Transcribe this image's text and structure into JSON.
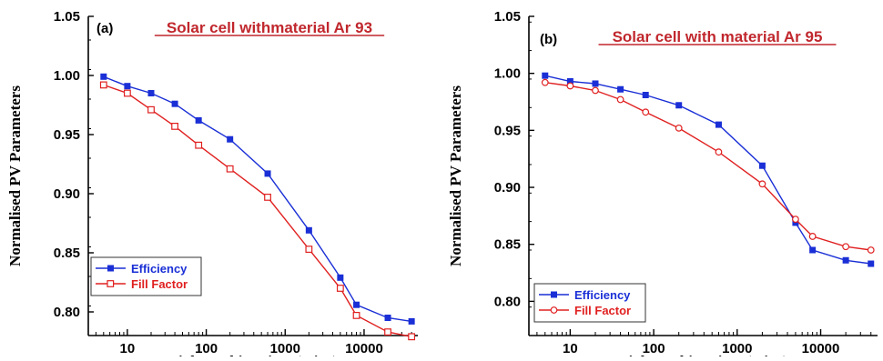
{
  "chart_data": [
    {
      "type": "line",
      "panel_label": "(a)",
      "title": "Solar cell withmaterial Ar 93",
      "xlabel": "Light soaking time (mins)",
      "ylabel": "Normalised PV Parameters",
      "xscale": "log",
      "xlim": [
        3.2,
        48000
      ],
      "ylim": [
        0.78,
        1.05
      ],
      "x_ticks": [
        10,
        100,
        1000,
        10000
      ],
      "x_tick_labels": [
        "10",
        "100",
        "1000",
        "10000"
      ],
      "y_ticks": [
        0.8,
        0.85,
        0.9,
        0.95,
        1.0,
        1.05
      ],
      "y_tick_labels": [
        "0.80",
        "0.85",
        "0.90",
        "0.95",
        "1.00",
        "1.05"
      ],
      "legend_position": "bottom-left",
      "x": [
        5,
        10,
        20,
        40,
        80,
        200,
        600,
        2000,
        5000,
        8000,
        20000,
        40000
      ],
      "series": [
        {
          "name": "Efficiency",
          "color": "#1a2fd6",
          "marker": "filled-square",
          "values": [
            0.999,
            0.991,
            0.985,
            0.976,
            0.962,
            0.946,
            0.917,
            0.869,
            0.829,
            0.806,
            0.795,
            0.792
          ]
        },
        {
          "name": "Fill Factor",
          "color": "#e02020",
          "marker": "open-square",
          "values": [
            0.992,
            0.985,
            0.971,
            0.957,
            0.941,
            0.921,
            0.897,
            0.853,
            0.82,
            0.797,
            0.783,
            0.779
          ]
        }
      ]
    },
    {
      "type": "line",
      "panel_label": "(b)",
      "title": "Solar cell with material Ar 95",
      "xlabel": "Light soaking time (mins)",
      "ylabel": "Normalised PV Parameters",
      "xscale": "log",
      "xlim": [
        3.2,
        48000
      ],
      "ylim": [
        0.77,
        1.05
      ],
      "x_ticks": [
        10,
        100,
        1000,
        10000
      ],
      "x_tick_labels": [
        "10",
        "100",
        "1000",
        "10000"
      ],
      "y_ticks": [
        0.8,
        0.85,
        0.9,
        0.95,
        1.0,
        1.05
      ],
      "y_tick_labels": [
        "0.80",
        "0.85",
        "0.90",
        "0.95",
        "1.00",
        "1.05"
      ],
      "legend_position": "bottom-left",
      "x": [
        5,
        10,
        20,
        40,
        80,
        200,
        600,
        2000,
        5000,
        8000,
        20000,
        40000
      ],
      "series": [
        {
          "name": "Efficiency",
          "color": "#1a2fd6",
          "marker": "filled-square",
          "values": [
            0.998,
            0.993,
            0.991,
            0.986,
            0.981,
            0.972,
            0.955,
            0.919,
            0.869,
            0.845,
            0.836,
            0.833
          ]
        },
        {
          "name": "Fill Factor",
          "color": "#e02020",
          "marker": "open-circle",
          "values": [
            0.992,
            0.989,
            0.985,
            0.977,
            0.966,
            0.952,
            0.931,
            0.903,
            0.872,
            0.857,
            0.848,
            0.845
          ]
        }
      ]
    }
  ]
}
